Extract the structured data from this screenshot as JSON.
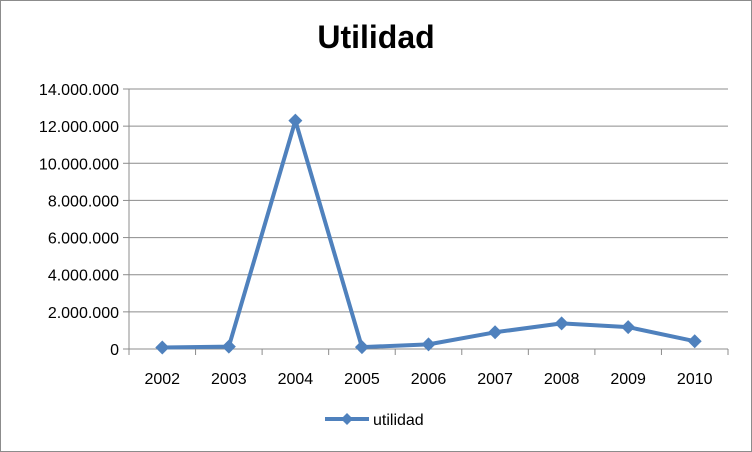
{
  "chart_data": {
    "type": "line",
    "title": "Utilidad",
    "xlabel": "",
    "ylabel": "",
    "categories": [
      "2002",
      "2003",
      "2004",
      "2005",
      "2006",
      "2007",
      "2008",
      "2009",
      "2010"
    ],
    "series": [
      {
        "name": "utilidad",
        "color": "#4F81BD",
        "marker": "diamond",
        "values": [
          80000,
          130000,
          12300000,
          100000,
          250000,
          900000,
          1380000,
          1180000,
          420000
        ]
      }
    ],
    "ylim": [
      0,
      14000000
    ],
    "yticks": [
      0,
      2000000,
      4000000,
      6000000,
      8000000,
      10000000,
      12000000,
      14000000
    ],
    "ytick_labels": [
      "0",
      "2.000.000",
      "4.000.000",
      "6.000.000",
      "8.000.000",
      "10.000.000",
      "12.000.000",
      "14.000.000"
    ],
    "grid": true,
    "legend_position": "bottom"
  }
}
